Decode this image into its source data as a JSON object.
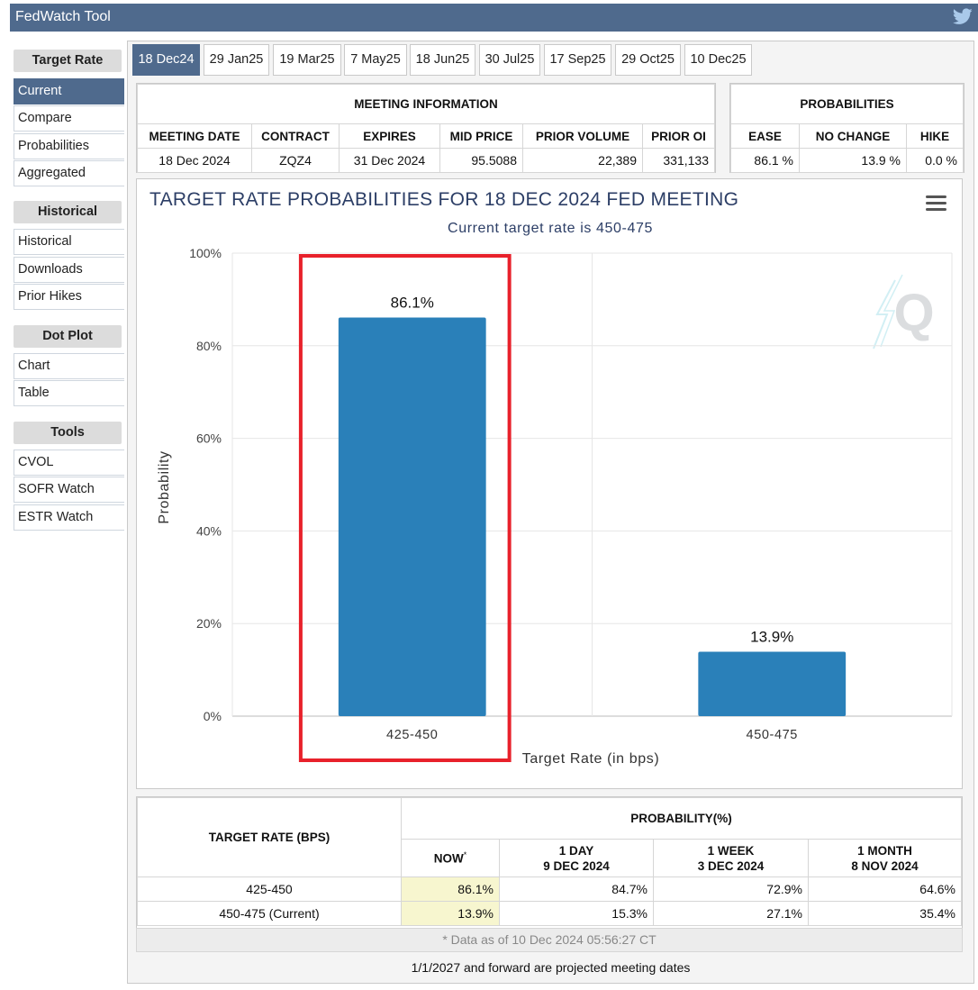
{
  "app": {
    "title": "FedWatch Tool",
    "twitter_icon": "twitter-icon"
  },
  "sidebar": {
    "sections": [
      {
        "heading": "Target Rate",
        "items": [
          "Current",
          "Compare",
          "Probabilities",
          "Aggregated"
        ],
        "active": "Current"
      },
      {
        "heading": "Historical",
        "items": [
          "Historical",
          "Downloads",
          "Prior Hikes"
        ]
      },
      {
        "heading": "Dot Plot",
        "items": [
          "Chart",
          "Table"
        ]
      },
      {
        "heading": "Tools",
        "items": [
          "CVOL",
          "SOFR Watch",
          "ESTR Watch"
        ]
      }
    ]
  },
  "tabs": {
    "items": [
      "18 Dec24",
      "29 Jan25",
      "19 Mar25",
      "7 May25",
      "18 Jun25",
      "30 Jul25",
      "17 Sep25",
      "29 Oct25",
      "10 Dec25"
    ],
    "active": "18 Dec24"
  },
  "meeting_info": {
    "heading": "MEETING INFORMATION",
    "columns": [
      "MEETING DATE",
      "CONTRACT",
      "EXPIRES",
      "MID PRICE",
      "PRIOR VOLUME",
      "PRIOR OI"
    ],
    "values": [
      "18 Dec 2024",
      "ZQZ4",
      "31 Dec 2024",
      "95.5088",
      "22,389",
      "331,133"
    ]
  },
  "probabilities": {
    "heading": "PROBABILITIES",
    "columns": [
      "EASE",
      "NO CHANGE",
      "HIKE"
    ],
    "values": [
      "86.1 %",
      "13.9 %",
      "0.0 %"
    ]
  },
  "chart_data": {
    "type": "bar",
    "title": "TARGET RATE PROBABILITIES FOR 18 DEC 2024 FED MEETING",
    "subtitle": "Current target rate is 450-475",
    "xlabel": "Target Rate (in bps)",
    "ylabel": "Probability",
    "categories": [
      "425-450",
      "450-475"
    ],
    "values": [
      86.1,
      13.9
    ],
    "data_labels": [
      "86.1%",
      "13.9%"
    ],
    "ylim": [
      0,
      100
    ],
    "yticks": [
      "0%",
      "20%",
      "40%",
      "60%",
      "80%",
      "100%"
    ],
    "bar_color": "#2a80b9",
    "highlight_color": "#e8212b",
    "highlighted_category": "425-450",
    "grid": true,
    "menu_icon": "hamburger-menu-icon",
    "watermark_icon": "q-logo-icon"
  },
  "prob_table": {
    "rate_heading": "TARGET RATE (BPS)",
    "prob_heading": "PROBABILITY(%)",
    "columns": [
      {
        "line1": "NOW",
        "line2": ""
      },
      {
        "line1": "1 DAY",
        "line2": "9 DEC 2024"
      },
      {
        "line1": "1 WEEK",
        "line2": "3 DEC 2024"
      },
      {
        "line1": "1 MONTH",
        "line2": "8 NOV 2024"
      }
    ],
    "now_marker": "*",
    "rows": [
      {
        "rate": "425-450",
        "values": [
          "86.1%",
          "84.7%",
          "72.9%",
          "64.6%"
        ]
      },
      {
        "rate": "450-475 (Current)",
        "values": [
          "13.9%",
          "15.3%",
          "27.1%",
          "35.4%"
        ]
      }
    ],
    "footnote": "* Data as of 10 Dec 2024 05:56:27 CT"
  },
  "bottom_note": "1/1/2027 and forward are projected meeting dates"
}
